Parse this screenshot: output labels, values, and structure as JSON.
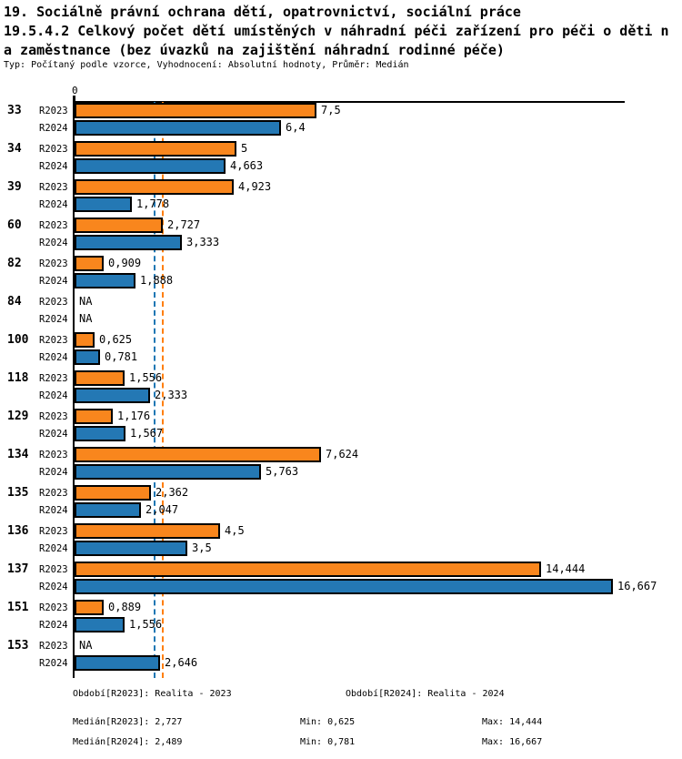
{
  "title": {
    "line1": "19. Sociálně právní ochrana dětí, opatrovnictví, sociální práce",
    "line2": "19.5.4.2 Celkový počet dětí umístěných v náhradní péči zařízení pro péči o děti n",
    "line3": "a zaměstnance (bez úvazků na zajištění náhradní rodinné péče)",
    "meta": "Typ: Počítaný podle vzorce, Vyhodnocení: Absolutní hodnoty, Průměr: Medián"
  },
  "chart_data": {
    "type": "bar",
    "orientation": "horizontal",
    "title": "19.5.4.2 Celkový počet dětí umístěných v náhradní péči zařízení pro péči o děti na zaměstnance (bez úvazků na zajištění náhradní rodinné péče)",
    "axis": {
      "zero_label": "0",
      "xlim": [
        0,
        17
      ],
      "grid": false
    },
    "categories": [
      "33",
      "34",
      "39",
      "60",
      "82",
      "84",
      "100",
      "118",
      "129",
      "134",
      "135",
      "136",
      "137",
      "151",
      "153"
    ],
    "series": [
      {
        "name": "R2023",
        "color": "#f9861d",
        "line_color": "#ff7f0e",
        "median": 2.727,
        "values": [
          7.5,
          5,
          4.923,
          2.727,
          0.909,
          null,
          0.625,
          1.556,
          1.176,
          7.624,
          2.362,
          4.5,
          14.444,
          0.889,
          null
        ],
        "labels": [
          "7,5",
          "5",
          "4,923",
          "2,727",
          "0,909",
          "NA",
          "0,625",
          "1,556",
          "1,176",
          "7,624",
          "2,362",
          "4,5",
          "14,444",
          "0,889",
          "NA"
        ]
      },
      {
        "name": "R2024",
        "color": "#2478b4",
        "line_color": "#1f77b4",
        "median": 2.489,
        "values": [
          6.4,
          4.663,
          1.778,
          3.333,
          1.888,
          null,
          0.781,
          2.333,
          1.567,
          5.763,
          2.047,
          3.5,
          16.667,
          1.556,
          2.646
        ],
        "labels": [
          "6,4",
          "4,663",
          "1,778",
          "3,333",
          "1,888",
          "NA",
          "0,781",
          "2,333",
          "1,567",
          "5,763",
          "2,047",
          "3,5",
          "16,667",
          "1,556",
          "2,646"
        ]
      }
    ],
    "legend_position": "none"
  },
  "footer": {
    "period_r2023": "Období[R2023]: Realita - 2023",
    "period_r2024": "Období[R2024]: Realita - 2024",
    "median_r2023": "Medián[R2023]: 2,727",
    "min_r2023": "Min: 0,625",
    "max_r2023": "Max: 14,444",
    "median_r2024": "Medián[R2024]: 2,489",
    "min_r2024": "Min: 0,781",
    "max_r2024": "Max: 16,667"
  },
  "colors": {
    "bar_r2023": "#f9861d",
    "bar_r2024": "#2478b4",
    "median_line_r2023": "#ff7f0e",
    "median_line_r2024": "#1f77b4",
    "axis": "#000000",
    "background": "#ffffff"
  }
}
